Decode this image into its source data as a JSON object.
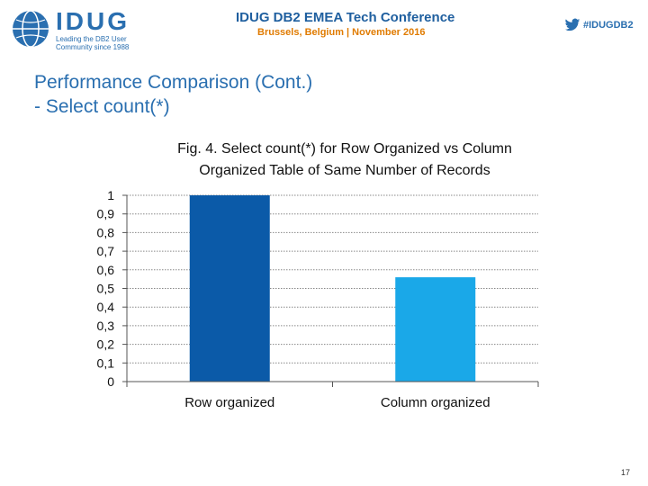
{
  "header": {
    "logo_text": "IDUG",
    "logo_tagline_1": "Leading the DB2 User",
    "logo_tagline_2": "Community since 1988",
    "conference_title": "IDUG DB2 EMEA Tech Conference",
    "conference_location": "Brussels, Belgium  |  November 2016",
    "hashtag": "#IDUGDB2"
  },
  "slide": {
    "title_line1": "Performance Comparison (Cont.)",
    "title_line2": "- Select count(*)",
    "page_number": "17"
  },
  "colors": {
    "brand_blue": "#2a6fb0",
    "accent_orange": "#e07b00",
    "bar_row": "#0b5aa8",
    "bar_column": "#1aa8e8"
  },
  "chart_data": {
    "type": "bar",
    "title": "Fig. 4. Select count(*) for Row Organized vs Column Organized Table of Same Number of Records",
    "title_line1": "Fig. 4. Select count(*) for Row Organized vs Column",
    "title_line2": "Organized Table of Same Number of Records",
    "categories": [
      "Row organized",
      "Column organized"
    ],
    "values": [
      1,
      0.56
    ],
    "ylim": [
      0,
      1
    ],
    "yticks": [
      "0",
      "0,1",
      "0,2",
      "0,3",
      "0,4",
      "0,5",
      "0,6",
      "0,7",
      "0,8",
      "0,9",
      "1"
    ],
    "grid": true,
    "legend": "none"
  }
}
